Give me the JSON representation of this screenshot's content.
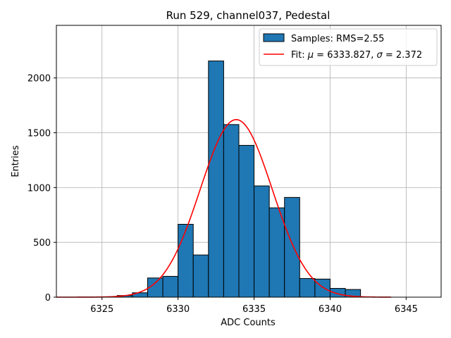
{
  "chart_data": {
    "type": "bar",
    "title": "Run 529, channel037, Pedestal",
    "xlabel": "ADC Counts",
    "ylabel": "Entries",
    "xlim": [
      6322,
      6347.3
    ],
    "ylim": [
      0,
      2480
    ],
    "xticks": [
      6325,
      6330,
      6335,
      6340,
      6345
    ],
    "yticks": [
      0,
      500,
      1000,
      1500,
      2000
    ],
    "grid": true,
    "bin_width": 1,
    "bins": [
      {
        "left": 6326,
        "value": 15
      },
      {
        "left": 6327,
        "value": 40
      },
      {
        "left": 6328,
        "value": 175
      },
      {
        "left": 6329,
        "value": 190
      },
      {
        "left": 6330,
        "value": 665
      },
      {
        "left": 6331,
        "value": 385
      },
      {
        "left": 6332,
        "value": 2155
      },
      {
        "left": 6333,
        "value": 1575
      },
      {
        "left": 6334,
        "value": 1385
      },
      {
        "left": 6335,
        "value": 1015
      },
      {
        "left": 6336,
        "value": 815
      },
      {
        "left": 6337,
        "value": 910
      },
      {
        "left": 6338,
        "value": 170
      },
      {
        "left": 6339,
        "value": 165
      },
      {
        "left": 6340,
        "value": 80
      },
      {
        "left": 6341,
        "value": 70
      }
    ],
    "fit": {
      "mu": 6333.827,
      "sigma": 2.372,
      "amplitude": 1620,
      "x_range": [
        6322,
        6344
      ]
    },
    "legend": {
      "position": "top-right",
      "entries": [
        {
          "name": "Samples: RMS=2.55",
          "kind": "patch"
        },
        {
          "name": "Fit: μ = 6333.827, σ = 2.372",
          "kind": "line"
        }
      ],
      "fit_parts": {
        "prefix": "Fit: ",
        "mu_symbol": "μ",
        "mu_text": " = 6333.827, ",
        "sigma_symbol": "σ",
        "sigma_text": " = 2.372"
      }
    },
    "colors": {
      "bar_fill": "#1f77b4",
      "bar_edge": "#000000",
      "fit_line": "#ff0000",
      "grid": "#b0b0b0"
    }
  }
}
